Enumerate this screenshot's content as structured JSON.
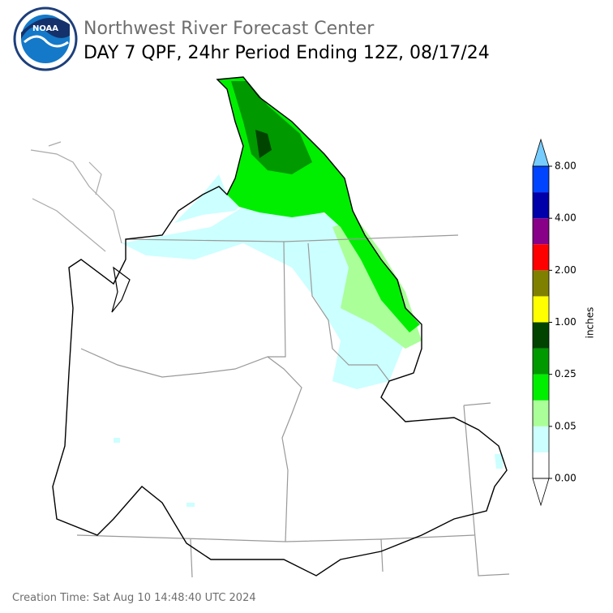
{
  "header": {
    "logo_text": "NOAA",
    "title": "Northwest River Forecast Center",
    "subtitle": "DAY 7 QPF, 24hr Period Ending 12Z, 08/17/24"
  },
  "colorbar": {
    "label": "inches",
    "labels": [
      "0.00",
      "0.05",
      "0.25",
      "1.00",
      "2.00",
      "4.00",
      "8.00"
    ],
    "colors": [
      "#ffffff",
      "#ccffff",
      "#aaff99",
      "#00ee00",
      "#009900",
      "#004400",
      "#ffff00",
      "#808000",
      "#ff0000",
      "#880088",
      "#0000aa",
      "#0044ff"
    ],
    "under_color": "#ffffff",
    "over_color": "#77ccff"
  },
  "footer": {
    "creation_time": "Creation Time: Sat Aug 10 14:48:40 UTC 2024"
  }
}
